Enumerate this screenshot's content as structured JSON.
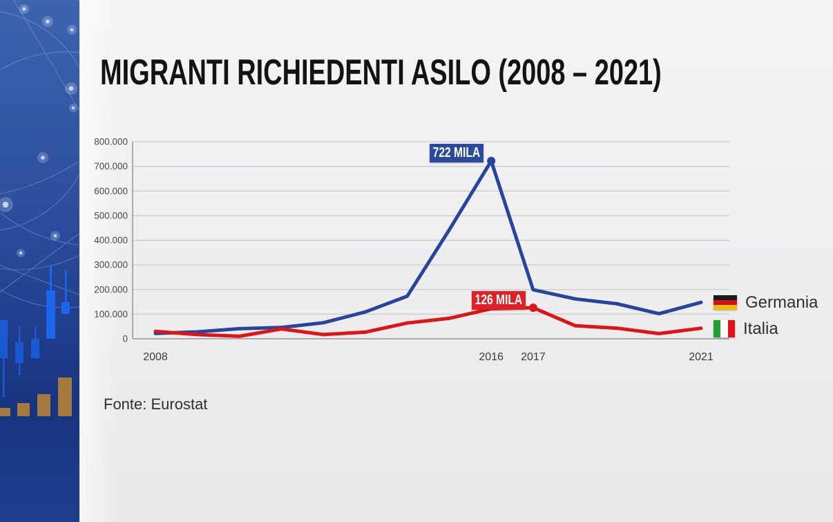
{
  "title": "MIGRANTI RICHIEDENTI ASILO (2008 – 2021)",
  "source": "Fonte: Eurostat",
  "legend": [
    {
      "label": "Germania",
      "icon": "germany-flag-icon",
      "flag_colors": [
        "#1b1b1b",
        "#d2101c",
        "#eebe00"
      ]
    },
    {
      "label": "Italia",
      "icon": "italy-flag-icon",
      "flag_colors": [
        "#23a032",
        "#ffffff",
        "#e31219"
      ]
    }
  ],
  "colors": {
    "germania_line": "#27459b",
    "italia_line": "#df1416",
    "germania_label_box": "#2a4a9c",
    "italia_label_box": "#e02027",
    "sidebar_blue_top": "#3e64ae",
    "sidebar_blue_bottom": "#17347f",
    "candlestick_blue": "#1b5fe0",
    "bar_gold": "#a57a41"
  },
  "chart_data": {
    "type": "line",
    "title": "MIGRANTI RICHIEDENTI ASILO (2008 – 2021)",
    "x": [
      2008,
      2009,
      2010,
      2011,
      2012,
      2013,
      2014,
      2015,
      2016,
      2017,
      2018,
      2019,
      2020,
      2021
    ],
    "series": [
      {
        "name": "Germania",
        "color": "#27459b",
        "values": [
          22,
          28,
          41,
          46,
          65,
          109,
          173,
          442,
          722,
          199,
          162,
          142,
          102,
          148
        ]
      },
      {
        "name": "Italia",
        "color": "#df1416",
        "values": [
          30,
          17,
          10,
          40,
          17,
          27,
          64,
          83,
          122,
          126,
          53,
          43,
          21,
          43
        ]
      }
    ],
    "values_unit": "migliaia (thousands)",
    "ylim": [
      0,
      800
    ],
    "grid": "horizontal",
    "y_ticks": [
      "800.000",
      "700.000",
      "600.000",
      "500.000",
      "400.000",
      "300.000",
      "200.000",
      "100.000",
      "0"
    ],
    "x_ticks": [
      {
        "year": 2008,
        "label": "2008"
      },
      {
        "year": 2016,
        "label": "2016"
      },
      {
        "year": 2017,
        "label": "2017"
      },
      {
        "year": 2021,
        "label": "2021"
      }
    ],
    "legend_position": "right",
    "annotations": [
      {
        "series": "Germania",
        "year": 2016,
        "label": "722 MILA",
        "box_color": "#2a4a9c"
      },
      {
        "series": "Italia",
        "year": 2017,
        "label": "126 MILA",
        "box_color": "#e02027"
      }
    ]
  }
}
